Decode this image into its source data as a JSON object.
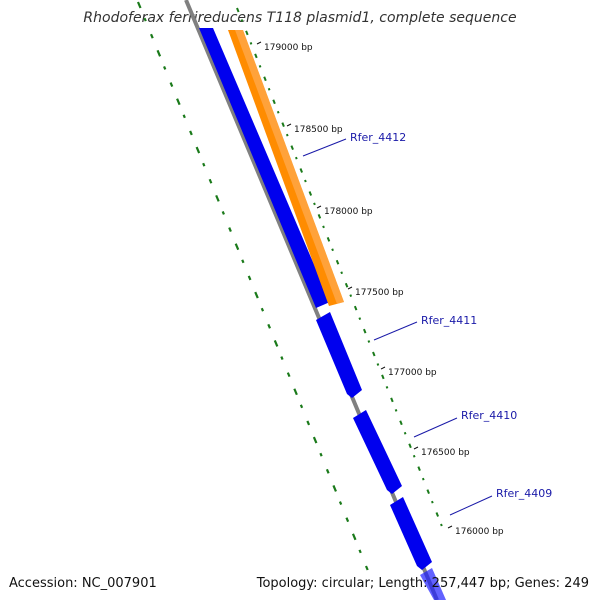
{
  "title": "Rhodoferax ferrireducens T118 plasmid1, complete sequence",
  "footer": {
    "accession": "Accession: NC_007901",
    "summary": "Topology: circular; Length: 257,447 bp; Genes: 249"
  },
  "colors": {
    "backbone": "#808080",
    "gene_forward": "#0000ee",
    "gene_highlight": "#ff8c00",
    "gc_dots": "#1a7a1a",
    "label": "#1a1aa8",
    "tick": "#111111"
  },
  "ticks": [
    "179000 bp",
    "178500 bp",
    "178000 bp",
    "177500 bp",
    "177000 bp",
    "176500 bp",
    "176000 bp"
  ],
  "genes": [
    {
      "label": "Rfer_4412"
    },
    {
      "label": "Rfer_4411"
    },
    {
      "label": "Rfer_4410"
    },
    {
      "label": "Rfer_4409"
    }
  ]
}
